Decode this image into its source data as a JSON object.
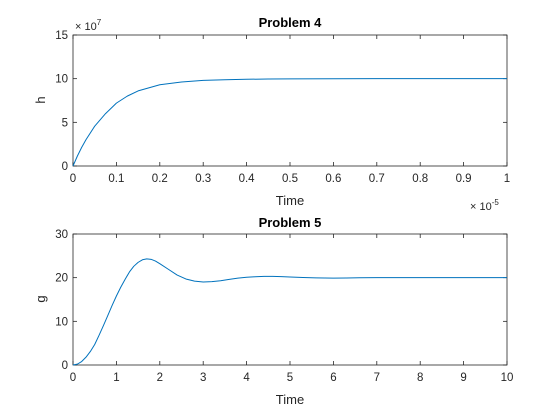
{
  "chart_data": [
    {
      "type": "line",
      "title": "Problem 4",
      "xlabel": "Time",
      "ylabel": "h",
      "x_exponent": {
        "base": "× 10",
        "power": "-5"
      },
      "y_exponent": {
        "base": "× 10",
        "power": "7"
      },
      "xlim": [
        0,
        1
      ],
      "ylim": [
        0,
        15
      ],
      "xticks": [
        0,
        0.1,
        0.2,
        0.3,
        0.4,
        0.5,
        0.6,
        0.7,
        0.8,
        0.9,
        1
      ],
      "xtick_labels": [
        "0",
        "0.1",
        "0.2",
        "0.3",
        "0.4",
        "0.5",
        "0.6",
        "0.7",
        "0.8",
        "0.9",
        "1"
      ],
      "yticks": [
        0,
        5,
        10,
        15
      ],
      "ytick_labels": [
        "0",
        "5",
        "10",
        "15"
      ],
      "grid": false,
      "series": [
        {
          "name": "h",
          "color": "#0072BD",
          "x": [
            0,
            0.01,
            0.02,
            0.03,
            0.05,
            0.075,
            0.1,
            0.125,
            0.15,
            0.2,
            0.25,
            0.3,
            0.35,
            0.4,
            0.45,
            0.5,
            0.6,
            0.7,
            0.8,
            0.9,
            1.0
          ],
          "y": [
            0,
            1.13,
            2.13,
            3.02,
            4.56,
            6.0,
            7.2,
            8.0,
            8.6,
            9.3,
            9.62,
            9.8,
            9.88,
            9.93,
            9.96,
            9.98,
            9.99,
            10.0,
            10.0,
            10.0,
            10.0
          ]
        }
      ]
    },
    {
      "type": "line",
      "title": "Problem 5",
      "xlabel": "Time",
      "ylabel": "g",
      "xlim": [
        0,
        10
      ],
      "ylim": [
        0,
        30
      ],
      "xticks": [
        0,
        1,
        2,
        3,
        4,
        5,
        6,
        7,
        8,
        9,
        10
      ],
      "xtick_labels": [
        "0",
        "1",
        "2",
        "3",
        "4",
        "5",
        "6",
        "7",
        "8",
        "9",
        "10"
      ],
      "yticks": [
        0,
        10,
        20,
        30
      ],
      "ytick_labels": [
        "0",
        "10",
        "20",
        "30"
      ],
      "grid": false,
      "series": [
        {
          "name": "g",
          "color": "#0072BD",
          "x": [
            0,
            0.1,
            0.2,
            0.3,
            0.4,
            0.5,
            0.6,
            0.7,
            0.8,
            0.9,
            1.0,
            1.1,
            1.2,
            1.3,
            1.4,
            1.5,
            1.6,
            1.7,
            1.8,
            1.9,
            2.0,
            2.2,
            2.4,
            2.6,
            2.8,
            3.0,
            3.2,
            3.4,
            3.6,
            3.8,
            4.0,
            4.2,
            4.4,
            4.6,
            4.8,
            5.0,
            5.3,
            5.6,
            6.0,
            6.3,
            6.6,
            7.0,
            7.5,
            8.0,
            8.5,
            9.0,
            9.5,
            10.0
          ],
          "y": [
            0,
            0.2,
            0.8,
            1.8,
            3.1,
            4.7,
            6.8,
            9.0,
            11.3,
            13.6,
            15.8,
            17.8,
            19.6,
            21.3,
            22.6,
            23.5,
            24.1,
            24.3,
            24.2,
            23.8,
            23.2,
            21.9,
            20.6,
            19.7,
            19.2,
            19.0,
            19.1,
            19.3,
            19.6,
            19.9,
            20.1,
            20.2,
            20.3,
            20.3,
            20.25,
            20.15,
            20.05,
            19.95,
            19.9,
            19.92,
            19.97,
            20.0,
            20.02,
            20.01,
            20.0,
            20.0,
            20.0,
            20.0
          ]
        }
      ]
    }
  ]
}
